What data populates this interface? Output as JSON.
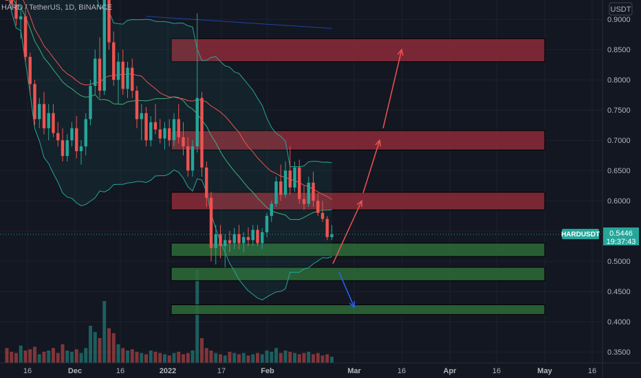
{
  "header": {
    "symbol_title": "HARD / TetherUS, 1D, BINANCE",
    "currency_button": "USDT"
  },
  "price_badge": {
    "symbol": "HARDUSDT",
    "price": "0.5446",
    "countdown": "19:37:43"
  },
  "colors": {
    "background": "#131722",
    "up": "#26a69a",
    "down": "#ef5350",
    "resistance_zone": "#8c2a37",
    "support_zone": "#2e6b37",
    "band": "#26a69a",
    "ma": "#ef5350",
    "arrow_up": "#ef5350",
    "arrow_down": "#2962ff"
  },
  "chart_data": {
    "type": "candlestick",
    "y_axis": {
      "ticks": [
        "0.9000",
        "0.8500",
        "0.8000",
        "0.7500",
        "0.7000",
        "0.6500",
        "0.6000",
        "0.5500",
        "0.5000",
        "0.4500",
        "0.4000",
        "0.3500"
      ],
      "ylim": [
        0.332,
        0.932
      ]
    },
    "x_axis": {
      "ticks": [
        "16",
        "Dec",
        "16",
        "2022",
        "17",
        "Feb",
        "Mar",
        "16",
        "Apr",
        "16",
        "May",
        "16"
      ]
    },
    "last_price": 0.5446,
    "candles": [
      [
        0.962,
        0.985,
        0.935,
        0.95
      ],
      [
        0.948,
        0.968,
        0.915,
        0.925
      ],
      [
        0.924,
        0.942,
        0.89,
        0.901
      ],
      [
        0.9,
        0.92,
        0.868,
        0.905
      ],
      [
        0.905,
        0.915,
        0.83,
        0.838
      ],
      [
        0.838,
        0.845,
        0.775,
        0.793
      ],
      [
        0.793,
        0.8,
        0.725,
        0.735
      ],
      [
        0.735,
        0.77,
        0.72,
        0.76
      ],
      [
        0.76,
        0.78,
        0.71,
        0.72
      ],
      [
        0.72,
        0.76,
        0.7,
        0.745
      ],
      [
        0.745,
        0.76,
        0.705,
        0.712
      ],
      [
        0.712,
        0.73,
        0.69,
        0.7
      ],
      [
        0.7,
        0.72,
        0.665,
        0.674
      ],
      [
        0.674,
        0.71,
        0.665,
        0.7
      ],
      [
        0.7,
        0.73,
        0.69,
        0.72
      ],
      [
        0.72,
        0.74,
        0.67,
        0.682
      ],
      [
        0.682,
        0.7,
        0.66,
        0.69
      ],
      [
        0.69,
        0.745,
        0.675,
        0.735
      ],
      [
        0.735,
        0.8,
        0.725,
        0.79
      ],
      [
        0.79,
        0.85,
        0.775,
        0.835
      ],
      [
        0.835,
        0.87,
        0.77,
        0.782
      ],
      [
        0.782,
        0.96,
        0.775,
        0.935
      ],
      [
        0.935,
        0.965,
        0.85,
        0.862
      ],
      [
        0.862,
        0.88,
        0.79,
        0.8
      ],
      [
        0.8,
        0.845,
        0.76,
        0.83
      ],
      [
        0.83,
        0.85,
        0.775,
        0.785
      ],
      [
        0.785,
        0.83,
        0.77,
        0.82
      ],
      [
        0.82,
        0.835,
        0.77,
        0.782
      ],
      [
        0.782,
        0.79,
        0.72,
        0.735
      ],
      [
        0.735,
        0.76,
        0.7,
        0.745
      ],
      [
        0.745,
        0.755,
        0.69,
        0.7
      ],
      [
        0.7,
        0.74,
        0.69,
        0.73
      ],
      [
        0.73,
        0.76,
        0.71,
        0.718
      ],
      [
        0.718,
        0.735,
        0.695,
        0.703
      ],
      [
        0.703,
        0.73,
        0.685,
        0.72
      ],
      [
        0.72,
        0.735,
        0.69,
        0.7
      ],
      [
        0.7,
        0.745,
        0.69,
        0.735
      ],
      [
        0.735,
        0.76,
        0.695,
        0.705
      ],
      [
        0.705,
        0.73,
        0.675,
        0.69
      ],
      [
        0.69,
        0.705,
        0.64,
        0.65
      ],
      [
        0.65,
        0.7,
        0.64,
        0.69
      ],
      [
        0.69,
        0.91,
        0.68,
        0.77
      ],
      [
        0.77,
        0.78,
        0.64,
        0.655
      ],
      [
        0.655,
        0.665,
        0.59,
        0.605
      ],
      [
        0.605,
        0.615,
        0.5,
        0.522
      ],
      [
        0.522,
        0.56,
        0.495,
        0.545
      ],
      [
        0.545,
        0.56,
        0.505,
        0.525
      ],
      [
        0.525,
        0.545,
        0.49,
        0.535
      ],
      [
        0.535,
        0.55,
        0.515,
        0.53
      ],
      [
        0.53,
        0.555,
        0.52,
        0.545
      ],
      [
        0.545,
        0.56,
        0.52,
        0.53
      ],
      [
        0.53,
        0.548,
        0.515,
        0.54
      ],
      [
        0.54,
        0.556,
        0.525,
        0.535
      ],
      [
        0.535,
        0.56,
        0.525,
        0.552
      ],
      [
        0.552,
        0.56,
        0.525,
        0.53
      ],
      [
        0.53,
        0.555,
        0.52,
        0.548
      ],
      [
        0.548,
        0.58,
        0.54,
        0.575
      ],
      [
        0.575,
        0.6,
        0.565,
        0.595
      ],
      [
        0.595,
        0.64,
        0.59,
        0.632
      ],
      [
        0.632,
        0.66,
        0.6,
        0.61
      ],
      [
        0.61,
        0.665,
        0.605,
        0.65
      ],
      [
        0.65,
        0.69,
        0.61,
        0.622
      ],
      [
        0.622,
        0.665,
        0.615,
        0.655
      ],
      [
        0.655,
        0.668,
        0.595,
        0.603
      ],
      [
        0.603,
        0.625,
        0.585,
        0.595
      ],
      [
        0.595,
        0.64,
        0.59,
        0.63
      ],
      [
        0.63,
        0.648,
        0.59,
        0.6
      ],
      [
        0.6,
        0.612,
        0.575,
        0.58
      ],
      [
        0.58,
        0.6,
        0.565,
        0.57
      ],
      [
        0.57,
        0.575,
        0.535,
        0.54
      ],
      [
        0.54,
        0.56,
        0.535,
        0.5446
      ]
    ],
    "volumes": [
      0.12,
      0.09,
      0.08,
      0.14,
      0.1,
      0.11,
      0.13,
      0.07,
      0.09,
      0.1,
      0.12,
      0.08,
      0.15,
      0.1,
      0.09,
      0.11,
      0.08,
      0.12,
      0.3,
      0.25,
      0.2,
      0.5,
      0.28,
      0.24,
      0.15,
      0.12,
      0.1,
      0.11,
      0.09,
      0.08,
      0.07,
      0.1,
      0.09,
      0.08,
      0.07,
      0.06,
      0.08,
      0.09,
      0.07,
      0.08,
      0.1,
      0.75,
      0.2,
      0.12,
      0.1,
      0.08,
      0.07,
      0.06,
      0.09,
      0.08,
      0.07,
      0.08,
      0.06,
      0.07,
      0.08,
      0.07,
      0.1,
      0.09,
      0.12,
      0.08,
      0.1,
      0.09,
      0.08,
      0.07,
      0.08,
      0.09,
      0.07,
      0.08,
      0.06,
      0.07,
      0.05
    ],
    "zones": [
      {
        "kind": "resistance",
        "top": 0.868,
        "bottom": 0.83
      },
      {
        "kind": "resistance",
        "top": 0.716,
        "bottom": 0.684
      },
      {
        "kind": "resistance",
        "top": 0.614,
        "bottom": 0.585
      },
      {
        "kind": "support",
        "top": 0.53,
        "bottom": 0.508
      },
      {
        "kind": "support",
        "top": 0.49,
        "bottom": 0.468
      },
      {
        "kind": "support",
        "top": 0.428,
        "bottom": 0.412
      }
    ],
    "projection_arrows": [
      {
        "kind": "up",
        "from_price": 0.496,
        "to_price": 0.6
      },
      {
        "kind": "up",
        "from_price": 0.613,
        "to_price": 0.7
      },
      {
        "kind": "up",
        "from_price": 0.72,
        "to_price": 0.85
      },
      {
        "kind": "down",
        "from_price": 0.482,
        "to_price": 0.424
      }
    ]
  }
}
